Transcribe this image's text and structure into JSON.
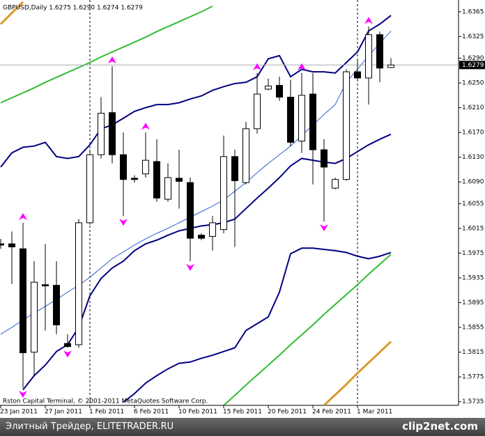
{
  "chart_data": {
    "type": "candlestick",
    "title": "GBPUSD,Daily  1.6275 1.6290 1.6274 1.6279",
    "credit": "Rston Capital Terminal, © 2001-2011 MetaQuotes Software Corp.",
    "categories": [
      "23 Jan 2011",
      null,
      null,
      null,
      "27 Jan 2011",
      null,
      null,
      null,
      "1 Feb 2011",
      null,
      null,
      null,
      "6 Feb 2011",
      null,
      null,
      null,
      "10 Feb 2011",
      null,
      null,
      null,
      "15 Feb 2011",
      null,
      null,
      null,
      "20 Feb 2011",
      null,
      null,
      null,
      "24 Feb 2011",
      null,
      null,
      null,
      "1 Mar 2011",
      null,
      null,
      null
    ],
    "open": [
      1.599,
      1.599,
      1.5982,
      1.5815,
      1.5924,
      1.5923,
      1.5829,
      1.5827,
      1.6024,
      1.6134,
      1.6202,
      1.6134,
      1.6096,
      1.6103,
      1.6123,
      1.6062,
      1.6096,
      1.6089,
      1.6004,
      1.6002,
      1.6013,
      1.6131,
      1.6089,
      1.6176,
      1.624,
      1.6246,
      1.6227,
      1.6156,
      1.6232,
      1.6142,
      1.608,
      1.6094,
      1.6268,
      1.6258,
      1.6328,
      1.6275
    ],
    "high": [
      1.5998,
      1.601,
      1.6024,
      1.5962,
      1.599,
      1.5962,
      1.5844,
      1.603,
      1.6142,
      1.6227,
      1.6277,
      1.617,
      1.6101,
      1.617,
      1.6159,
      1.612,
      1.6142,
      1.6097,
      1.6007,
      1.6035,
      1.6165,
      1.6142,
      1.6187,
      1.6266,
      1.6257,
      1.626,
      1.6255,
      1.6266,
      1.6266,
      1.6159,
      1.6097,
      1.6272,
      1.6288,
      1.6341,
      1.6333,
      1.629
    ],
    "low": [
      1.5982,
      1.5925,
      1.5757,
      1.5777,
      1.585,
      1.5844,
      1.5822,
      1.5822,
      1.6021,
      1.6128,
      1.612,
      1.6035,
      1.6089,
      1.6097,
      1.6058,
      1.6058,
      1.6047,
      1.5962,
      1.5996,
      1.5979,
      1.6007,
      1.5985,
      1.6086,
      1.6168,
      1.6238,
      1.6221,
      1.6148,
      1.6137,
      1.6086,
      1.6026,
      1.6078,
      1.6092,
      1.6255,
      1.6215,
      1.6251,
      1.6274
    ],
    "close": [
      1.5988,
      1.5985,
      1.5814,
      1.5928,
      1.5922,
      1.5859,
      1.5824,
      1.6024,
      1.6134,
      1.6201,
      1.6134,
      1.6094,
      1.6094,
      1.6125,
      1.6064,
      1.6097,
      1.6091,
      1.5999,
      1.5999,
      1.6024,
      1.6131,
      1.6092,
      1.6176,
      1.6232,
      1.6245,
      1.6227,
      1.6154,
      1.623,
      1.6142,
      1.6114,
      1.6094,
      1.6268,
      1.6258,
      1.6328,
      1.6274,
      1.6279
    ],
    "up_color": "#ffffff",
    "down_color": "#000000",
    "outline_color": "#000000",
    "lines": [
      {
        "color": "#000080",
        "width": 2,
        "values": [
          1.6114,
          1.6137,
          1.6146,
          1.6148,
          1.6154,
          1.6131,
          1.6128,
          1.6131,
          1.615,
          1.6176,
          1.6182,
          1.6193,
          1.6204,
          1.621,
          1.6215,
          1.6215,
          1.6218,
          1.6224,
          1.6229,
          1.6238,
          1.6244,
          1.6249,
          1.6251,
          1.626,
          1.6289,
          1.6294,
          1.626,
          1.6272,
          1.6268,
          1.6268,
          1.6266,
          1.6283,
          1.63,
          1.6334,
          1.6345,
          1.6359
        ]
      },
      {
        "color": "#000080",
        "width": 2,
        "values": [
          null,
          null,
          1.5754,
          1.5777,
          1.5794,
          1.5816,
          1.5827,
          1.5855,
          1.5906,
          1.5934,
          1.5951,
          1.5962,
          1.5979,
          1.599,
          1.5996,
          1.6004,
          1.6011,
          1.6015,
          1.6019,
          1.6021,
          1.6024,
          1.603,
          1.6047,
          1.6064,
          1.608,
          1.6097,
          1.6116,
          1.6128,
          1.6125,
          1.6122,
          1.612,
          1.6128,
          1.6139,
          1.615,
          1.6159,
          1.6167
        ]
      },
      {
        "color": "#000080",
        "width": 2,
        "values": [
          null,
          null,
          null,
          null,
          null,
          null,
          null,
          null,
          null,
          null,
          null,
          1.5734,
          1.5748,
          1.5765,
          1.5777,
          1.5788,
          1.5797,
          1.5799,
          1.5805,
          1.581,
          1.5816,
          1.5822,
          1.585,
          1.5861,
          1.5872,
          1.5912,
          1.5974,
          1.5983,
          1.5983,
          1.5981,
          1.5979,
          1.5976,
          1.597,
          1.5966,
          1.597,
          1.5976
        ]
      },
      {
        "color": "#3060d0",
        "width": 1,
        "values": [
          1.5844,
          1.5855,
          1.5867,
          1.5878,
          1.5889,
          1.59,
          1.5912,
          1.5923,
          1.5936,
          1.5951,
          1.5966,
          1.5977,
          1.5988,
          1.5998,
          1.6007,
          1.6015,
          1.6024,
          1.6033,
          1.6042,
          1.6051,
          1.6061,
          1.6075,
          1.6089,
          1.6105,
          1.612,
          1.6134,
          1.6148,
          1.6165,
          1.6182,
          1.6199,
          1.6215,
          1.6251,
          1.6272,
          1.6294,
          1.6314,
          1.6334
        ]
      },
      {
        "color": "#33bb33",
        "width": 2,
        "values": [
          1.6218,
          1.6226,
          1.6234,
          1.6242,
          1.6251,
          1.6259,
          1.6267,
          1.6275,
          1.6283,
          1.6292,
          1.63,
          1.6308,
          1.6316,
          1.6324,
          1.6333,
          1.6341,
          1.6349,
          1.6357,
          1.6365,
          1.6374,
          null,
          null,
          null,
          null,
          null,
          null,
          null,
          null,
          null,
          null,
          null,
          null,
          null,
          null,
          null,
          null
        ]
      },
      {
        "color": "#33bb33",
        "width": 2,
        "values": [
          null,
          null,
          null,
          null,
          null,
          null,
          null,
          null,
          null,
          null,
          null,
          null,
          null,
          null,
          null,
          null,
          null,
          null,
          null,
          null,
          1.5729,
          1.5745,
          1.5762,
          1.5778,
          1.5794,
          1.581,
          1.5827,
          1.5843,
          1.5859,
          1.5876,
          1.5892,
          1.5908,
          1.5924,
          1.5941,
          1.5957,
          1.5973
        ]
      },
      {
        "color": "#d99a2b",
        "width": 3,
        "values": [
          1.6345,
          1.6363,
          1.6381,
          null,
          null,
          null,
          null,
          null,
          null,
          null,
          null,
          null,
          null,
          null,
          null,
          null,
          null,
          null,
          null,
          null,
          null,
          null,
          null,
          null,
          null,
          null,
          null,
          null,
          null,
          null,
          null,
          null,
          null,
          null,
          null,
          null
        ]
      },
      {
        "color": "#d99a2b",
        "width": 3,
        "values": [
          null,
          null,
          null,
          null,
          null,
          null,
          null,
          null,
          null,
          null,
          null,
          null,
          null,
          null,
          null,
          null,
          null,
          null,
          null,
          null,
          null,
          null,
          null,
          null,
          null,
          null,
          null,
          null,
          null,
          1.5729,
          1.5746,
          1.5763,
          1.5781,
          1.5798,
          1.5815,
          1.5832
        ]
      }
    ],
    "fractals_up": [
      2,
      10,
      13,
      23,
      27,
      33
    ],
    "fractals_down": [
      2,
      6,
      11,
      17,
      29
    ],
    "fractal_color": "#ff00ff",
    "bid": 1.6279,
    "ylim": [
      1.5729,
      1.6384
    ],
    "yticks": [
      1.6365,
      1.6325,
      {
        "value": 1.629,
        "label": "1.6290"
      },
      {
        "value": 1.625,
        "label": "1.6250"
      },
      {
        "value": 1.621,
        "label": "1.6210"
      },
      {
        "value": 1.617,
        "label": "1.6170"
      },
      {
        "value": 1.613,
        "label": "1.6130"
      },
      {
        "value": 1.609,
        "label": "1.6090"
      },
      1.6055,
      1.6015,
      1.5975,
      1.5935,
      1.5895,
      1.5855,
      1.5815,
      1.5775,
      1.5735
    ]
  },
  "footer": {
    "text": "Элитный Трейдер, ELITETRADER.RU",
    "logo": "clip2net.com"
  }
}
